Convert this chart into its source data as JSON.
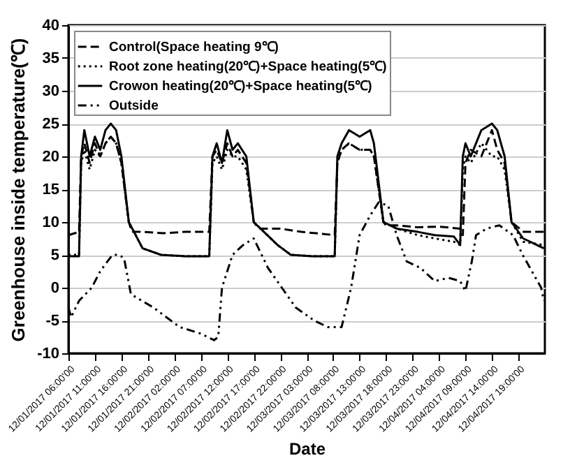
{
  "chart_data": {
    "type": "line",
    "xlabel": "Date",
    "ylabel": "Greenhouse inside temperature(℃)",
    "xlim": [
      "2017-12-01T06:00",
      "2017-12-05T00:00"
    ],
    "ylim": [
      -10,
      40
    ],
    "yticks": [
      -10,
      -5,
      0,
      5,
      10,
      15,
      20,
      25,
      30,
      35,
      40
    ],
    "xticks": [
      {
        "value": "2017-12-01T06:00",
        "label": "12/01/2017 06:00'00"
      },
      {
        "value": "2017-12-01T11:00",
        "label": "12/01/2017 11:00'00"
      },
      {
        "value": "2017-12-01T16:00",
        "label": "12/01/2017 16:00'00"
      },
      {
        "value": "2017-12-01T21:00",
        "label": "12/01/2017 21:00'00"
      },
      {
        "value": "2017-12-02T02:00",
        "label": "12/02/2017 02:00'00"
      },
      {
        "value": "2017-12-02T07:00",
        "label": "12/02/2017 07:00'00"
      },
      {
        "value": "2017-12-02T12:00",
        "label": "12/02/2017 12:00'00"
      },
      {
        "value": "2017-12-02T17:00",
        "label": "12/02/2017 17:00'00"
      },
      {
        "value": "2017-12-02T22:00",
        "label": "12/02/2017 22:00'00"
      },
      {
        "value": "2017-12-03T03:00",
        "label": "12/03/2017 03:00'00"
      },
      {
        "value": "2017-12-03T08:00",
        "label": "12/03/2017 08:00'00"
      },
      {
        "value": "2017-12-03T13:00",
        "label": "12/03/2017 13:00'00"
      },
      {
        "value": "2017-12-03T18:00",
        "label": "12/03/2017 18:00'00"
      },
      {
        "value": "2017-12-03T23:00",
        "label": "12/03/2017 23:00'00"
      },
      {
        "value": "2017-12-04T04:00",
        "label": "12/04/2017 04:00'00"
      },
      {
        "value": "2017-12-04T09:00",
        "label": "12/04/2017 09:00'00"
      },
      {
        "value": "2017-12-04T14:00",
        "label": "12/04/2017 14:00'00"
      },
      {
        "value": "2017-12-04T19:00",
        "label": "12/04/2017 19:00'00"
      }
    ],
    "grid": "y",
    "legend": "top left",
    "series": [
      {
        "name": "Control(Space heating 9℃)",
        "color": "#000000",
        "line_style": "dashed",
        "x": [
          "2017-12-01T06:00",
          "2017-12-01T08:00",
          "2017-12-01T08:24",
          "2017-12-01T09:00",
          "2017-12-01T10:00",
          "2017-12-01T11:00",
          "2017-12-01T12:00",
          "2017-12-01T13:00",
          "2017-12-01T14:00",
          "2017-12-01T15:00",
          "2017-12-01T16:00",
          "2017-12-01T17:24",
          "2017-12-01T18:00",
          "2017-12-01T20:00",
          "2017-12-02T00:00",
          "2017-12-02T04:00",
          "2017-12-02T08:36",
          "2017-12-02T09:12",
          "2017-12-02T10:00",
          "2017-12-02T11:00",
          "2017-12-02T12:00",
          "2017-12-02T13:00",
          "2017-12-02T14:00",
          "2017-12-02T15:36",
          "2017-12-02T17:00",
          "2017-12-02T18:00",
          "2017-12-02T22:00",
          "2017-12-03T02:00",
          "2017-12-03T06:00",
          "2017-12-03T08:18",
          "2017-12-03T08:48",
          "2017-12-03T09:36",
          "2017-12-03T11:00",
          "2017-12-03T13:00",
          "2017-12-03T15:00",
          "2017-12-03T15:42",
          "2017-12-03T17:30",
          "2017-12-03T18:00",
          "2017-12-03T20:00",
          "2017-12-04T00:00",
          "2017-12-04T04:00",
          "2017-12-04T08:00",
          "2017-12-04T08:30",
          "2017-12-04T09:00",
          "2017-12-04T10:00",
          "2017-12-04T12:00",
          "2017-12-04T14:00",
          "2017-12-04T15:00",
          "2017-12-04T16:24",
          "2017-12-04T17:42",
          "2017-12-04T20:00",
          "2017-12-04T23:48"
        ],
        "values": [
          8,
          8.5,
          20,
          22,
          19,
          22,
          20,
          22,
          23,
          22,
          19,
          10,
          8.5,
          8.5,
          8.3,
          8.5,
          8.5,
          20,
          21,
          19,
          22,
          20,
          21,
          19,
          10,
          9,
          9,
          8.5,
          8.2,
          8,
          19,
          21,
          22,
          21,
          21,
          20,
          10,
          9.5,
          9.5,
          9.2,
          9.3,
          9,
          8,
          19,
          21,
          20,
          24,
          21,
          19,
          10,
          8.5,
          8.5
        ]
      },
      {
        "name": "Root zone heating(20℃)+Space heating(5℃)",
        "color": "#000000",
        "line_style": "dotted",
        "x": [
          "2017-12-01T06:00",
          "2017-12-01T08:00",
          "2017-12-01T08:24",
          "2017-12-01T09:00",
          "2017-12-01T10:00",
          "2017-12-01T11:00",
          "2017-12-01T12:00",
          "2017-12-01T13:00",
          "2017-12-01T14:00",
          "2017-12-01T15:00",
          "2017-12-01T16:00",
          "2017-12-01T17:24",
          "2017-12-01T20:00",
          "2017-12-01T23:30",
          "2017-12-02T04:00",
          "2017-12-02T08:36",
          "2017-12-02T09:12",
          "2017-12-02T10:00",
          "2017-12-02T11:00",
          "2017-12-02T12:00",
          "2017-12-02T13:00",
          "2017-12-02T14:00",
          "2017-12-02T15:36",
          "2017-12-02T17:00",
          "2017-12-02T21:30",
          "2017-12-03T00:00",
          "2017-12-03T04:00",
          "2017-12-03T08:18",
          "2017-12-03T08:48",
          "2017-12-03T09:36",
          "2017-12-03T11:00",
          "2017-12-03T13:00",
          "2017-12-03T15:00",
          "2017-12-03T15:42",
          "2017-12-03T17:30",
          "2017-12-03T20:00",
          "2017-12-04T00:00",
          "2017-12-04T03:12",
          "2017-12-04T06:48",
          "2017-12-04T08:00",
          "2017-12-04T08:30",
          "2017-12-04T09:00",
          "2017-12-04T10:00",
          "2017-12-04T12:00",
          "2017-12-04T14:00",
          "2017-12-04T15:00",
          "2017-12-04T16:24",
          "2017-12-04T17:42",
          "2017-12-04T19:54",
          "2017-12-04T23:48"
        ],
        "values": [
          5,
          5,
          19,
          21,
          18,
          21,
          20,
          22,
          23,
          22,
          19,
          10,
          6,
          5,
          4.8,
          4.8,
          19,
          20,
          18,
          21,
          20,
          20,
          18,
          10,
          6.5,
          5,
          4.8,
          4.8,
          19,
          21,
          22,
          21,
          21,
          20,
          10,
          9,
          8,
          7.5,
          7,
          6.5,
          18,
          20,
          19,
          22,
          20,
          20,
          18,
          10,
          7,
          6.5
        ]
      },
      {
        "name": "Crowon heating(20℃)+Space heating(5℃)",
        "color": "#000000",
        "line_style": "solid",
        "x": [
          "2017-12-01T06:00",
          "2017-12-01T08:00",
          "2017-12-01T08:24",
          "2017-12-01T09:00",
          "2017-12-01T10:00",
          "2017-12-01T11:00",
          "2017-12-01T12:00",
          "2017-12-01T13:00",
          "2017-12-01T14:00",
          "2017-12-01T15:00",
          "2017-12-01T16:00",
          "2017-12-01T17:24",
          "2017-12-01T20:00",
          "2017-12-01T23:30",
          "2017-12-02T04:00",
          "2017-12-02T08:36",
          "2017-12-02T09:12",
          "2017-12-02T10:00",
          "2017-12-02T11:00",
          "2017-12-02T12:00",
          "2017-12-02T13:00",
          "2017-12-02T14:00",
          "2017-12-02T15:36",
          "2017-12-02T17:00",
          "2017-12-02T21:30",
          "2017-12-03T00:00",
          "2017-12-03T04:00",
          "2017-12-03T08:18",
          "2017-12-03T08:48",
          "2017-12-03T09:36",
          "2017-12-03T11:00",
          "2017-12-03T13:00",
          "2017-12-03T15:00",
          "2017-12-03T15:42",
          "2017-12-03T17:30",
          "2017-12-03T20:00",
          "2017-12-04T00:00",
          "2017-12-04T03:12",
          "2017-12-04T06:48",
          "2017-12-04T08:00",
          "2017-12-04T08:30",
          "2017-12-04T09:00",
          "2017-12-04T10:00",
          "2017-12-04T12:00",
          "2017-12-04T14:00",
          "2017-12-04T15:00",
          "2017-12-04T16:24",
          "2017-12-04T17:42",
          "2017-12-04T19:54",
          "2017-12-04T23:48"
        ],
        "values": [
          4.8,
          4.8,
          20,
          24,
          20,
          23,
          21,
          24,
          25,
          24,
          20,
          10,
          6,
          5,
          4.8,
          4.8,
          20,
          22,
          19,
          24,
          21,
          22,
          20,
          10,
          6.5,
          5,
          4.8,
          4.8,
          20,
          22,
          24,
          23,
          24,
          22,
          10,
          9,
          8.5,
          8,
          7.8,
          6.5,
          20,
          22,
          20,
          24,
          25,
          24,
          20,
          10,
          7.5,
          6
        ]
      },
      {
        "name": "Outside",
        "color": "#000000",
        "line_style": "dashdot",
        "x": [
          "2017-12-01T06:00",
          "2017-12-01T06:30",
          "2017-12-01T08:00",
          "2017-12-01T10:24",
          "2017-12-01T12:00",
          "2017-12-01T14:18",
          "2017-12-01T15:30",
          "2017-12-01T16:30",
          "2017-12-01T17:48",
          "2017-12-01T22:00",
          "2017-12-02T03:00",
          "2017-12-02T07:00",
          "2017-12-02T09:30",
          "2017-12-02T10:18",
          "2017-12-02T11:00",
          "2017-12-02T13:00",
          "2017-12-02T15:00",
          "2017-12-02T17:00",
          "2017-12-02T19:42",
          "2017-12-02T22:18",
          "2017-12-03T00:54",
          "2017-12-03T04:24",
          "2017-12-03T07:00",
          "2017-12-03T09:36",
          "2017-12-03T11:24",
          "2017-12-03T13:00",
          "2017-12-03T15:00",
          "2017-12-03T16:36",
          "2017-12-03T18:24",
          "2017-12-03T20:00",
          "2017-12-03T21:54",
          "2017-12-04T00:30",
          "2017-12-04T03:12",
          "2017-12-04T05:48",
          "2017-12-04T08:00",
          "2017-12-04T09:00",
          "2017-12-04T10:12",
          "2017-12-04T11:00",
          "2017-12-04T13:00",
          "2017-12-04T15:24",
          "2017-12-04T18:00",
          "2017-12-04T19:48",
          "2017-12-04T23:18",
          "2017-12-04T23:48"
        ],
        "values": [
          -3,
          -4.5,
          -2,
          0,
          2.5,
          5,
          5,
          4.5,
          -1,
          -3,
          -6,
          -7,
          -8,
          -7.5,
          0,
          5,
          6.5,
          7.5,
          3,
          0,
          -3,
          -5,
          -6,
          -6,
          0,
          8,
          11,
          13,
          12.5,
          8,
          4,
          3,
          1,
          1.5,
          1,
          -0.5,
          4,
          8,
          9,
          9.5,
          8,
          5,
          0,
          -2
        ]
      }
    ]
  }
}
